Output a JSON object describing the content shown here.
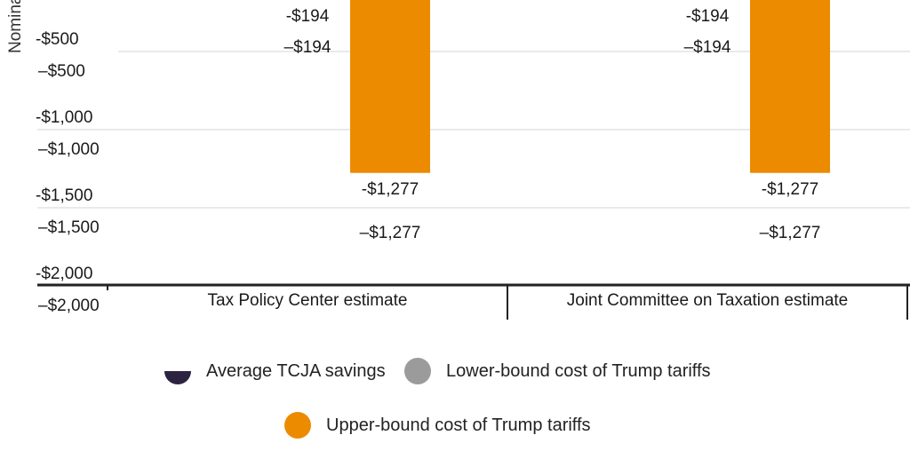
{
  "chart_data": {
    "type": "bar",
    "ylabel": "Nominal",
    "ylim": [
      -2000,
      0
    ],
    "categories": [
      "Tax Policy Center estimate",
      "Joint Committee on Taxation estimate"
    ],
    "series": [
      {
        "name": "Average TCJA savings",
        "values": [
          null,
          null
        ]
      },
      {
        "name": "Lower-bound cost of Trump tariffs",
        "values": [
          -194,
          -194
        ]
      },
      {
        "name": "Upper-bound cost of Trump tariffs",
        "values": [
          -1277,
          -1277
        ]
      }
    ],
    "y_ticks": [
      {
        "value": -500,
        "label": "-$500",
        "label_alt": "–$500"
      },
      {
        "value": -1000,
        "label": "-$1,000",
        "label_alt": "–$1,000"
      },
      {
        "value": -1500,
        "label": "-$1,500",
        "label_alt": "–$1,500"
      },
      {
        "value": -2000,
        "label": "-$2,000",
        "label_alt": "–$2,000"
      }
    ],
    "data_labels": {
      "lower": {
        "label": "-$194",
        "label_alt": "–$194"
      },
      "upper": {
        "label": "-$1,277",
        "label_alt": "–$1,277"
      }
    },
    "colors": {
      "tcja": "#2b2340",
      "lower": "#9b9b9b",
      "upper": "#ec8b00",
      "grid": "#e3e3e3",
      "axis": "#222222"
    }
  },
  "legend": [
    {
      "label": "Average TCJA savings",
      "color": "#2b2340"
    },
    {
      "label": "Lower-bound cost of Trump tariffs",
      "color": "#9b9b9b"
    },
    {
      "label": "Upper-bound cost of Trump tariffs",
      "color": "#ec8b00"
    }
  ]
}
